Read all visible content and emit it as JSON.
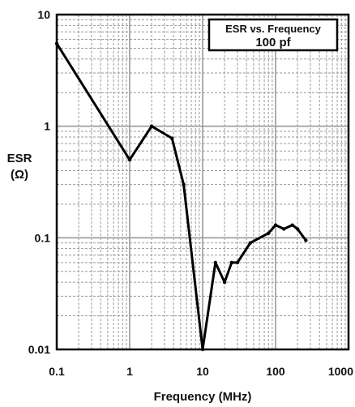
{
  "chart_data": {
    "type": "line",
    "title": "ESR vs. Frequency",
    "subtitle": "100 pf",
    "xlabel": "Frequency (MHz)",
    "ylabel_line1": "ESR",
    "ylabel_line2": "(Ω)",
    "x_scale": "log",
    "y_scale": "log",
    "xlim": [
      0.1,
      1000
    ],
    "ylim": [
      0.01,
      10
    ],
    "x_ticks": [
      0.1,
      1,
      10,
      100,
      1000
    ],
    "x_tick_labels": [
      "0.1",
      "1",
      "10",
      "100",
      "1000"
    ],
    "y_ticks": [
      0.01,
      0.1,
      1,
      10
    ],
    "y_tick_labels": [
      "0.01",
      "0.1",
      "1",
      "10"
    ],
    "grid": true,
    "legend": "none",
    "colors": {
      "line": "#000000",
      "grid": "#9a9a9a",
      "frame": "#000000"
    },
    "series": [
      {
        "x": [
          0.1,
          1,
          2,
          3.8,
          5.5,
          10,
          15,
          20,
          25,
          30,
          45,
          80,
          100,
          130,
          170,
          200,
          260
        ],
        "y": [
          5.5,
          0.5,
          1.0,
          0.78,
          0.3,
          0.01,
          0.06,
          0.04,
          0.06,
          0.06,
          0.09,
          0.11,
          0.13,
          0.12,
          0.13,
          0.12,
          0.095
        ]
      }
    ]
  }
}
